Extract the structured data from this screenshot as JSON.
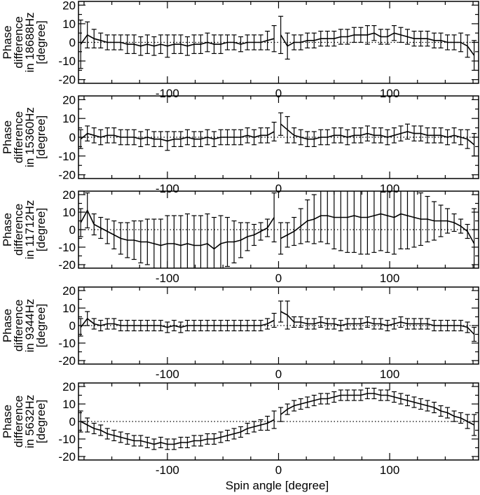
{
  "chart_data": [
    {
      "type": "line",
      "ylabel": [
        "Phase",
        "difference",
        "in 18688Hz",
        "[degree]"
      ],
      "xlim": [
        -180,
        180
      ],
      "ylim": [
        -22,
        22
      ],
      "xticks": [
        -100,
        0,
        100
      ],
      "yticks": [
        -20,
        -10,
        0,
        10,
        20
      ],
      "x": [
        -178,
        -172,
        -166,
        -160,
        -154,
        -148,
        -142,
        -136,
        -130,
        -124,
        -118,
        -112,
        -106,
        -100,
        -94,
        -88,
        -82,
        -76,
        -70,
        -64,
        -58,
        -52,
        -46,
        -40,
        -34,
        -28,
        -22,
        -16,
        -10,
        -4,
        2,
        8,
        14,
        20,
        26,
        32,
        38,
        44,
        50,
        56,
        62,
        68,
        74,
        80,
        86,
        92,
        98,
        104,
        110,
        116,
        122,
        128,
        134,
        140,
        146,
        152,
        158,
        164,
        170,
        176
      ],
      "y": [
        -1,
        4,
        2,
        1,
        0,
        0,
        0,
        -1,
        -1,
        -2,
        -1,
        -2,
        -1,
        -2,
        -1,
        -1,
        -2,
        -1,
        -1,
        0,
        -1,
        -1,
        0,
        0,
        -1,
        0,
        0,
        0,
        1,
        2,
        4,
        -2,
        0,
        0,
        1,
        1,
        2,
        2,
        2,
        3,
        3,
        4,
        4,
        4,
        5,
        3,
        3,
        5,
        4,
        3,
        2,
        2,
        2,
        1,
        1,
        0,
        0,
        0,
        -2,
        -7
      ],
      "err": [
        13,
        7,
        5,
        4,
        4,
        4,
        4,
        5,
        5,
        5,
        5,
        5,
        5,
        6,
        5,
        5,
        5,
        5,
        5,
        5,
        5,
        5,
        4,
        4,
        4,
        4,
        4,
        4,
        5,
        7,
        10,
        7,
        4,
        4,
        4,
        4,
        4,
        4,
        4,
        4,
        4,
        4,
        4,
        5,
        4,
        4,
        4,
        4,
        4,
        4,
        4,
        4,
        4,
        4,
        4,
        4,
        4,
        5,
        6,
        8
      ],
      "reference_line": 0
    },
    {
      "type": "line",
      "ylabel": [
        "Phase",
        "difference",
        "in 15360Hz",
        "[degree]"
      ],
      "xlim": [
        -180,
        180
      ],
      "ylim": [
        -22,
        22
      ],
      "xticks": [
        -100,
        0,
        100
      ],
      "yticks": [
        -20,
        -10,
        0,
        10,
        20
      ],
      "x": [
        -178,
        -172,
        -166,
        -160,
        -154,
        -148,
        -142,
        -136,
        -130,
        -124,
        -118,
        -112,
        -106,
        -100,
        -94,
        -88,
        -82,
        -76,
        -70,
        -64,
        -58,
        -52,
        -46,
        -40,
        -34,
        -28,
        -22,
        -16,
        -10,
        -4,
        2,
        8,
        14,
        20,
        26,
        32,
        38,
        44,
        50,
        56,
        62,
        68,
        74,
        80,
        86,
        92,
        98,
        104,
        110,
        116,
        122,
        128,
        134,
        140,
        146,
        152,
        158,
        164,
        170,
        176
      ],
      "y": [
        -1,
        2,
        1,
        0,
        1,
        1,
        0,
        0,
        0,
        -1,
        0,
        -1,
        -1,
        -2,
        -1,
        -1,
        0,
        -1,
        -1,
        0,
        -1,
        0,
        0,
        0,
        0,
        1,
        0,
        1,
        1,
        3,
        7,
        4,
        1,
        0,
        -1,
        -1,
        0,
        0,
        1,
        1,
        0,
        1,
        1,
        2,
        1,
        1,
        0,
        1,
        2,
        3,
        2,
        2,
        1,
        1,
        1,
        0,
        1,
        0,
        -1,
        -4
      ],
      "err": [
        5,
        4,
        4,
        4,
        4,
        4,
        4,
        4,
        4,
        4,
        4,
        4,
        4,
        5,
        4,
        4,
        4,
        4,
        4,
        4,
        4,
        4,
        4,
        4,
        4,
        4,
        4,
        4,
        4,
        5,
        6,
        7,
        4,
        4,
        4,
        4,
        4,
        4,
        4,
        4,
        4,
        4,
        4,
        4,
        4,
        4,
        4,
        4,
        4,
        4,
        4,
        4,
        4,
        4,
        4,
        4,
        4,
        4,
        5,
        6
      ],
      "reference_line": 0
    },
    {
      "type": "line",
      "ylabel": [
        "Phase",
        "difference",
        "in 11712Hz",
        "[degree]"
      ],
      "xlim": [
        -180,
        180
      ],
      "ylim": [
        -22,
        22
      ],
      "xticks": [
        -100,
        0,
        100
      ],
      "yticks": [
        -20,
        -10,
        0,
        10,
        20
      ],
      "x": [
        -178,
        -172,
        -166,
        -160,
        -154,
        -148,
        -142,
        -136,
        -130,
        -124,
        -118,
        -112,
        -106,
        -100,
        -94,
        -88,
        -82,
        -76,
        -70,
        -64,
        -58,
        -52,
        -46,
        -40,
        -34,
        -28,
        -22,
        -16,
        -10,
        -4,
        2,
        8,
        14,
        20,
        26,
        32,
        38,
        44,
        50,
        56,
        62,
        68,
        74,
        80,
        86,
        92,
        98,
        104,
        110,
        116,
        122,
        128,
        134,
        140,
        146,
        152,
        158,
        164,
        170,
        176
      ],
      "y": [
        4,
        11,
        3,
        1,
        -1,
        -3,
        -5,
        -6,
        -6,
        -7,
        -7,
        -8,
        -9,
        -8,
        -8,
        -9,
        -8,
        -9,
        -9,
        -8,
        -11,
        -8,
        -7,
        -7,
        -6,
        -4,
        -3,
        -1,
        1,
        7,
        -5,
        -3,
        -1,
        2,
        5,
        6,
        8,
        8,
        7,
        7,
        7,
        8,
        7,
        7,
        8,
        9,
        8,
        7,
        9,
        8,
        7,
        6,
        6,
        5,
        5,
        5,
        4,
        2,
        -1,
        -8
      ],
      "err": [
        8,
        10,
        6,
        6,
        7,
        8,
        9,
        10,
        11,
        12,
        13,
        14,
        15,
        16,
        16,
        17,
        17,
        17,
        17,
        17,
        18,
        16,
        14,
        12,
        10,
        8,
        6,
        5,
        5,
        14,
        9,
        7,
        8,
        10,
        12,
        14,
        15,
        16,
        18,
        19,
        20,
        21,
        21,
        21,
        21,
        21,
        21,
        21,
        20,
        19,
        17,
        15,
        13,
        11,
        9,
        7,
        5,
        4,
        4,
        20
      ],
      "reference_line": 0
    },
    {
      "type": "line",
      "ylabel": [
        "Phase",
        "difference",
        "in 9344Hz",
        "[degree]"
      ],
      "xlim": [
        -180,
        180
      ],
      "ylim": [
        -22,
        22
      ],
      "xticks": [
        -100,
        0,
        100
      ],
      "yticks": [
        -20,
        -10,
        0,
        10,
        20
      ],
      "x": [
        -178,
        -172,
        -166,
        -160,
        -154,
        -148,
        -142,
        -136,
        -130,
        -124,
        -118,
        -112,
        -106,
        -100,
        -94,
        -88,
        -82,
        -76,
        -70,
        -64,
        -58,
        -52,
        -46,
        -40,
        -34,
        -28,
        -22,
        -16,
        -10,
        -4,
        2,
        8,
        14,
        20,
        26,
        32,
        38,
        44,
        50,
        56,
        62,
        68,
        74,
        80,
        86,
        92,
        98,
        104,
        110,
        116,
        122,
        128,
        134,
        140,
        146,
        152,
        158,
        164,
        170,
        176
      ],
      "y": [
        -1,
        4,
        1,
        0,
        1,
        1,
        0,
        0,
        0,
        0,
        0,
        0,
        0,
        -1,
        0,
        -1,
        0,
        0,
        0,
        0,
        0,
        0,
        0,
        0,
        0,
        0,
        0,
        0,
        1,
        3,
        8,
        6,
        2,
        2,
        1,
        1,
        2,
        1,
        1,
        0,
        1,
        1,
        1,
        2,
        1,
        1,
        0,
        1,
        2,
        1,
        1,
        1,
        1,
        0,
        0,
        0,
        0,
        0,
        -1,
        -5
      ],
      "err": [
        5,
        4,
        3,
        3,
        3,
        3,
        3,
        3,
        3,
        3,
        3,
        3,
        3,
        3,
        3,
        3,
        3,
        3,
        3,
        3,
        3,
        3,
        3,
        3,
        3,
        3,
        3,
        3,
        3,
        4,
        6,
        8,
        3,
        3,
        3,
        3,
        3,
        3,
        3,
        3,
        3,
        3,
        3,
        3,
        3,
        3,
        3,
        3,
        3,
        3,
        3,
        3,
        3,
        3,
        3,
        3,
        3,
        3,
        3,
        4
      ],
      "reference_line": 0
    },
    {
      "type": "line",
      "ylabel": [
        "Phase",
        "difference",
        "in 5632Hz",
        "[degree]"
      ],
      "xlabel": "Spin angle [degree]",
      "xlim": [
        -180,
        180
      ],
      "ylim": [
        -22,
        22
      ],
      "xticks": [
        -100,
        0,
        100
      ],
      "yticks": [
        -20,
        -10,
        0,
        10,
        20
      ],
      "x": [
        -178,
        -172,
        -166,
        -160,
        -154,
        -148,
        -142,
        -136,
        -130,
        -124,
        -118,
        -112,
        -106,
        -100,
        -94,
        -88,
        -82,
        -76,
        -70,
        -64,
        -58,
        -52,
        -46,
        -40,
        -34,
        -28,
        -22,
        -16,
        -10,
        -4,
        2,
        8,
        14,
        20,
        26,
        32,
        38,
        44,
        50,
        56,
        62,
        68,
        74,
        80,
        86,
        92,
        98,
        104,
        110,
        116,
        122,
        128,
        134,
        140,
        146,
        152,
        158,
        164,
        170,
        176
      ],
      "y": [
        0,
        -2,
        -4,
        -5,
        -7,
        -8,
        -9,
        -10,
        -11,
        -11,
        -12,
        -13,
        -12,
        -13,
        -13,
        -12,
        -12,
        -11,
        -11,
        -10,
        -10,
        -9,
        -8,
        -7,
        -6,
        -4,
        -3,
        -2,
        -1,
        1,
        4,
        7,
        9,
        10,
        11,
        12,
        13,
        13,
        14,
        15,
        15,
        15,
        15,
        16,
        16,
        15,
        15,
        14,
        13,
        12,
        11,
        10,
        9,
        8,
        6,
        5,
        3,
        2,
        0,
        -2
      ],
      "err": [
        6,
        4,
        3,
        3,
        3,
        3,
        3,
        3,
        3,
        3,
        3,
        3,
        3,
        3,
        3,
        3,
        3,
        3,
        3,
        3,
        3,
        3,
        3,
        3,
        3,
        3,
        3,
        3,
        4,
        5,
        4,
        3,
        3,
        3,
        3,
        3,
        3,
        3,
        3,
        3,
        3,
        3,
        3,
        3,
        3,
        3,
        3,
        3,
        3,
        3,
        3,
        3,
        3,
        3,
        3,
        3,
        3,
        3,
        4,
        6
      ],
      "reference_line": 0
    }
  ]
}
